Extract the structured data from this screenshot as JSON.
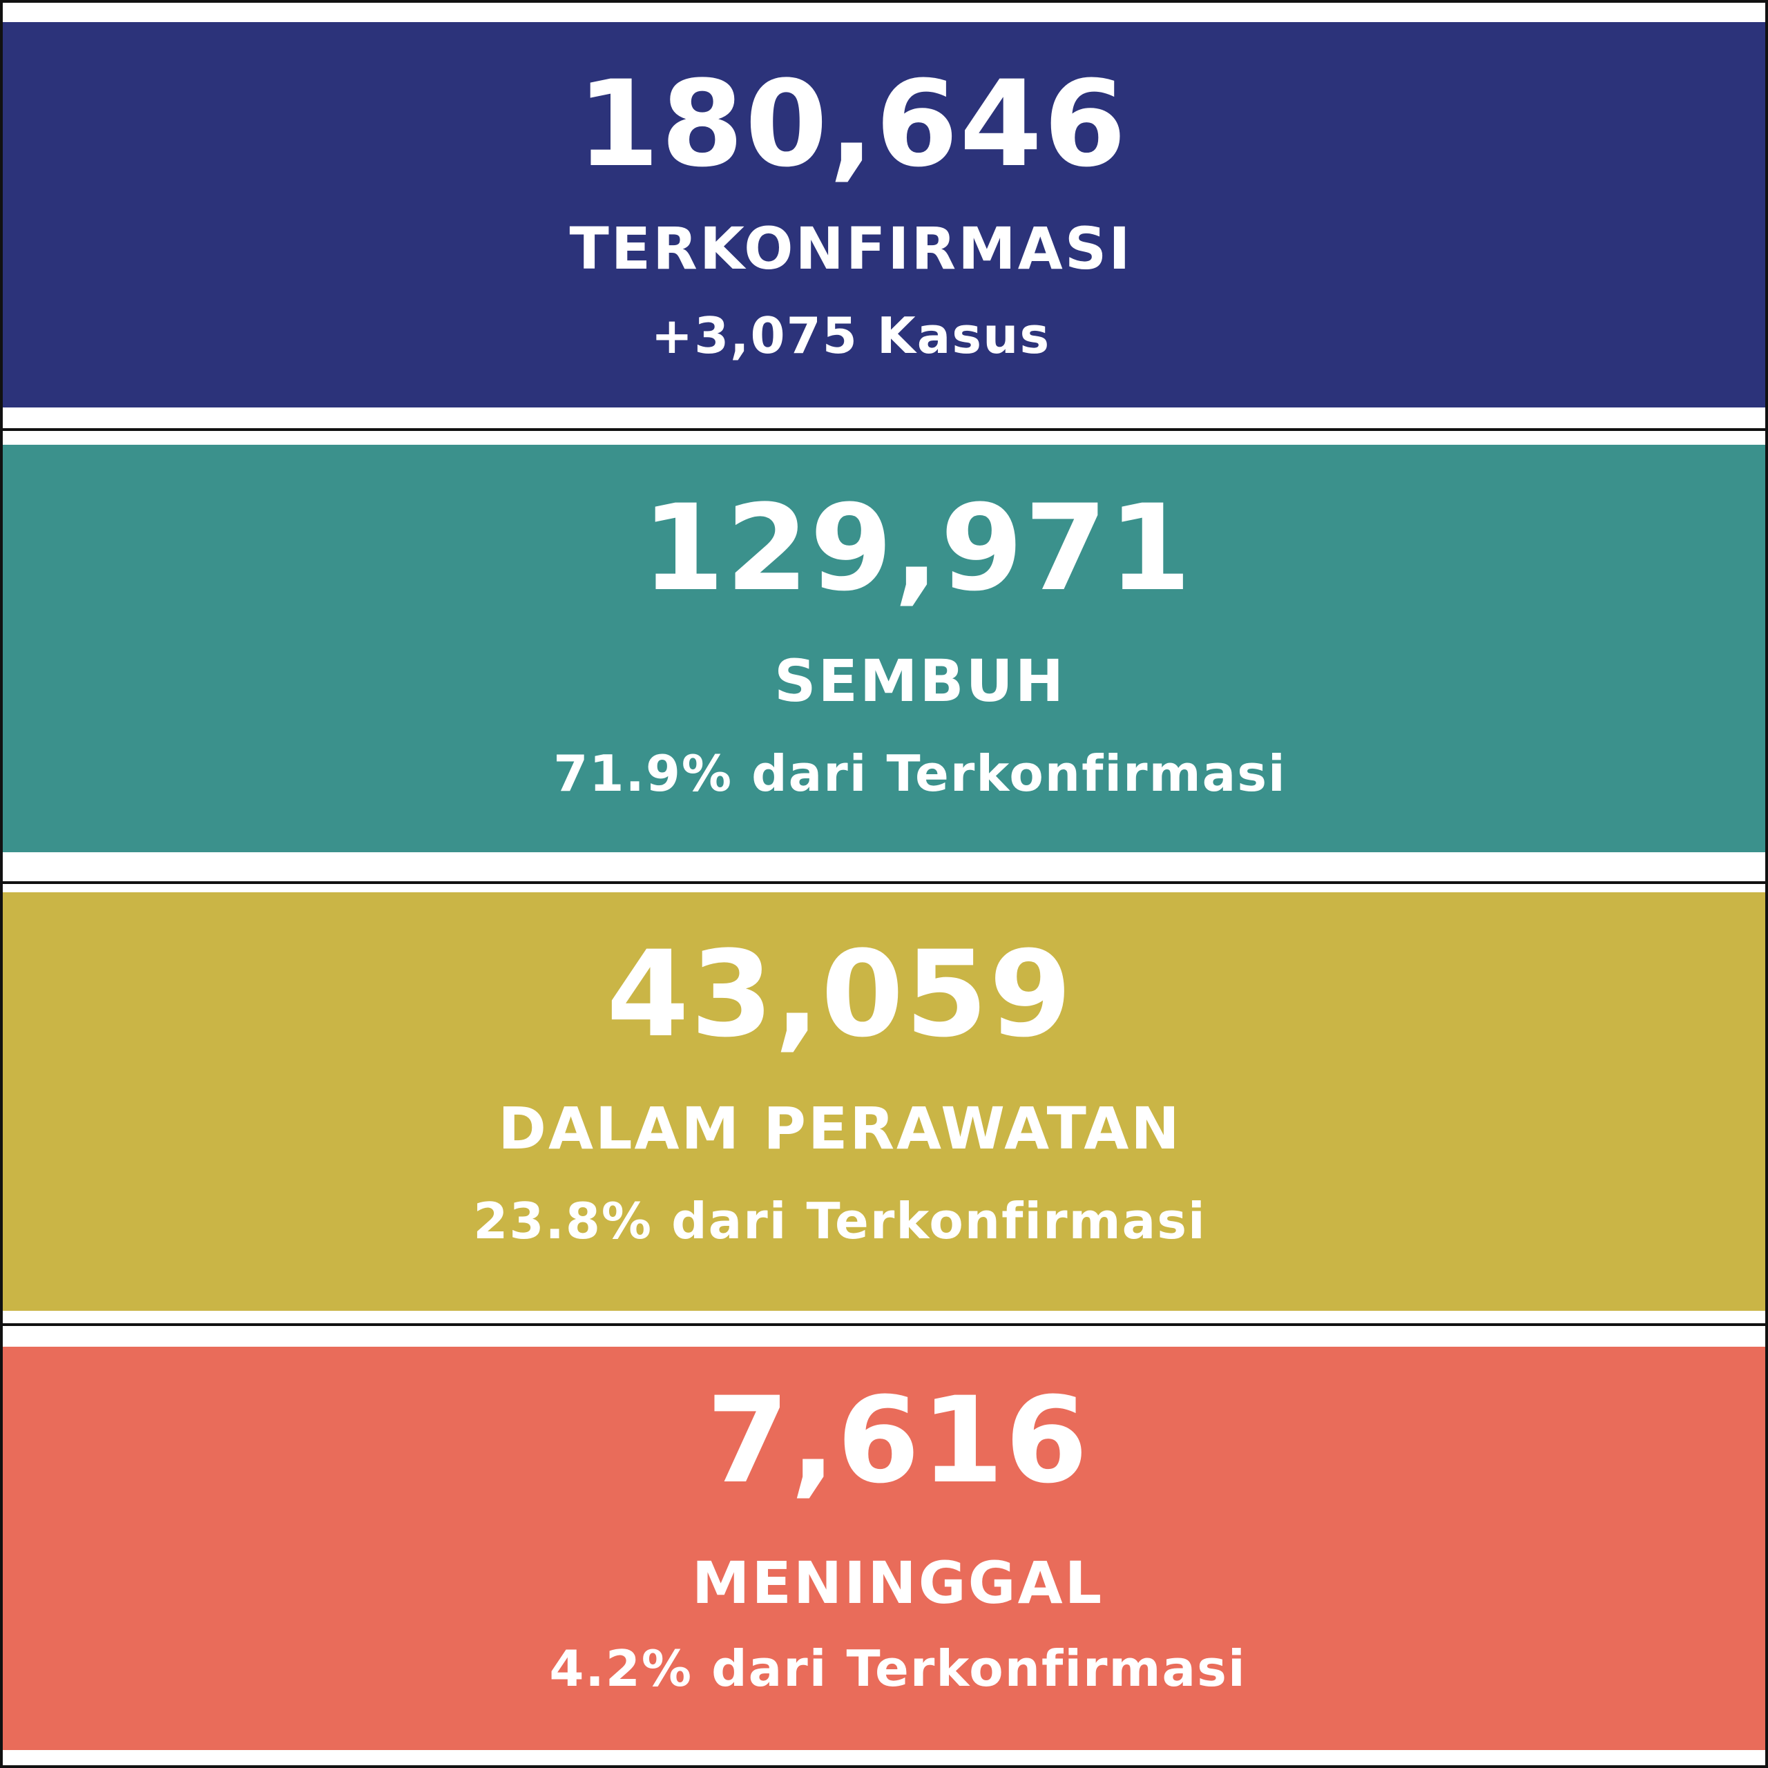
{
  "stats": [
    {
      "number": "180,646",
      "label": "TERKONFIRMASI",
      "sub": "+3,075 Kasus",
      "color": "#2c337a"
    },
    {
      "number": "129,971",
      "label": "SEMBUH",
      "sub": "71.9% dari Terkonfirmasi",
      "color": "#3b918c"
    },
    {
      "number": "43,059",
      "label": "DALAM PERAWATAN",
      "sub": "23.8% dari Terkonfirmasi",
      "color": "#cab546"
    },
    {
      "number": "7,616",
      "label": "MENINGGAL",
      "sub": "4.2% dari Terkonfirmasi",
      "color": "#e96c5a"
    }
  ]
}
